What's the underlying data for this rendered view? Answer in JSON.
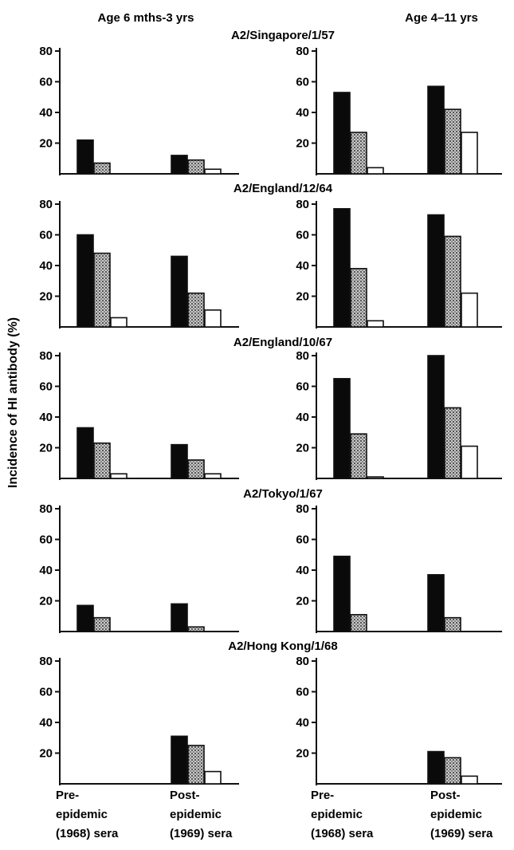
{
  "chart_data": {
    "type": "bar",
    "ylabel": "Incidence of HI antibody (%)",
    "ylim": [
      0,
      80
    ],
    "yticks": [
      20,
      40,
      60,
      80
    ],
    "grid": false,
    "legend": "none",
    "colors": {
      "black": "#0a0a0a",
      "stippled": "#a0a0a0",
      "white": "#ffffff"
    },
    "column_titles": [
      "Age 6 mths-3 yrs",
      "Age 4–11 yrs"
    ],
    "categories": [
      [
        "Pre-",
        "epidemic",
        "(1968) sera"
      ],
      [
        "Post-",
        "epidemic",
        "(1969) sera"
      ]
    ],
    "series_order": [
      "black",
      "stippled",
      "white"
    ],
    "panels": [
      {
        "strain": "A2/Singapore/1/57",
        "groups": [
          {
            "age": "Age 6 mths-3 yrs",
            "pre": [
              22,
              7,
              0
            ],
            "post": [
              12,
              9,
              3
            ]
          },
          {
            "age": "Age 4–11 yrs",
            "pre": [
              53,
              27,
              4
            ],
            "post": [
              57,
              42,
              27
            ]
          }
        ]
      },
      {
        "strain": "A2/England/12/64",
        "groups": [
          {
            "age": "Age 6 mths-3 yrs",
            "pre": [
              60,
              48,
              6
            ],
            "post": [
              46,
              22,
              11
            ]
          },
          {
            "age": "Age 4–11 yrs",
            "pre": [
              77,
              38,
              4
            ],
            "post": [
              73,
              59,
              22
            ]
          }
        ]
      },
      {
        "strain": "A2/England/10/67",
        "groups": [
          {
            "age": "Age 6 mths-3 yrs",
            "pre": [
              33,
              23,
              3
            ],
            "post": [
              22,
              12,
              3
            ]
          },
          {
            "age": "Age 4–11 yrs",
            "pre": [
              65,
              29,
              1
            ],
            "post": [
              80,
              46,
              21
            ]
          }
        ]
      },
      {
        "strain": "A2/Tokyo/1/67",
        "groups": [
          {
            "age": "Age 6 mths-3 yrs",
            "pre": [
              17,
              9,
              0
            ],
            "post": [
              18,
              3,
              0
            ]
          },
          {
            "age": "Age 4–11 yrs",
            "pre": [
              49,
              11,
              0
            ],
            "post": [
              37,
              9,
              0
            ]
          }
        ]
      },
      {
        "strain": "A2/Hong Kong/1/68",
        "groups": [
          {
            "age": "Age 6 mths-3 yrs",
            "pre": [
              0,
              0,
              0
            ],
            "post": [
              31,
              25,
              8
            ]
          },
          {
            "age": "Age 4–11 yrs",
            "pre": [
              0,
              0,
              0
            ],
            "post": [
              21,
              17,
              5
            ]
          }
        ]
      }
    ]
  }
}
